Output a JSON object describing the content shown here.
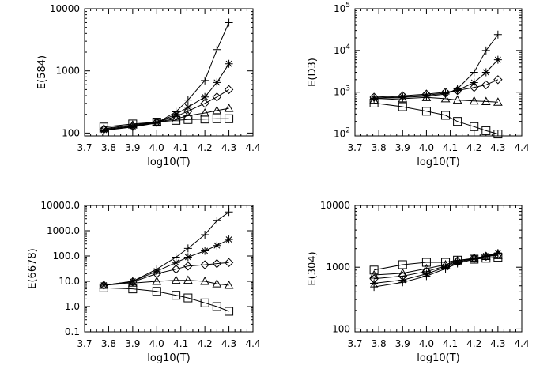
{
  "chart_data": [
    {
      "type": "line",
      "ylabel": "E(584)",
      "xlabel": "log10(T)",
      "xlim": [
        3.7,
        4.4
      ],
      "ylim": [
        90,
        10000
      ],
      "yscale": "log",
      "x": [
        3.78,
        3.9,
        4.0,
        4.08,
        4.13,
        4.2,
        4.25,
        4.3
      ],
      "xticks": [
        "3.7",
        "3.8",
        "3.9",
        "4.0",
        "4.1",
        "4.2",
        "4.3",
        "4.4"
      ],
      "yticks": [
        {
          "value": 100,
          "label": "100"
        },
        {
          "value": 1000,
          "label": "1000"
        },
        {
          "value": 10000,
          "label": "10000"
        }
      ],
      "series": [
        {
          "marker": "plus",
          "values": [
            110,
            125,
            145,
            220,
            340,
            700,
            2200,
            6000
          ]
        },
        {
          "marker": "asterisk",
          "values": [
            112,
            127,
            148,
            200,
            260,
            380,
            650,
            1300
          ]
        },
        {
          "marker": "diamond",
          "values": [
            115,
            130,
            150,
            185,
            225,
            300,
            380,
            500
          ]
        },
        {
          "marker": "triangle",
          "values": [
            118,
            135,
            150,
            170,
            190,
            210,
            230,
            250
          ]
        },
        {
          "marker": "square",
          "values": [
            125,
            140,
            150,
            160,
            165,
            168,
            170,
            170
          ]
        }
      ]
    },
    {
      "type": "line",
      "ylabel": "E(D3)",
      "xlabel": "log10(T)",
      "xlim": [
        3.7,
        4.4
      ],
      "ylim": [
        90,
        100000
      ],
      "yscale": "log",
      "x": [
        3.78,
        3.9,
        4.0,
        4.08,
        4.13,
        4.2,
        4.25,
        4.3
      ],
      "xticks": [
        "3.7",
        "3.8",
        "3.9",
        "4.0",
        "4.1",
        "4.2",
        "4.3",
        "4.4"
      ],
      "yticks": [
        {
          "value": 100,
          "label": "10",
          "sup": "2"
        },
        {
          "value": 1000,
          "label": "10",
          "sup": "3"
        },
        {
          "value": 10000,
          "label": "10",
          "sup": "4"
        },
        {
          "value": 100000,
          "label": "10",
          "sup": "5"
        }
      ],
      "series": [
        {
          "marker": "plus",
          "values": [
            700,
            750,
            800,
            900,
            1200,
            3000,
            10000,
            24000
          ]
        },
        {
          "marker": "asterisk",
          "values": [
            720,
            780,
            850,
            950,
            1100,
            1700,
            3000,
            6000
          ]
        },
        {
          "marker": "diamond",
          "values": [
            760,
            820,
            900,
            1000,
            1100,
            1300,
            1500,
            2000
          ]
        },
        {
          "marker": "triangle",
          "values": [
            650,
            700,
            750,
            700,
            650,
            620,
            600,
            580
          ]
        },
        {
          "marker": "square",
          "values": [
            550,
            450,
            350,
            280,
            200,
            150,
            120,
            100
          ]
        }
      ]
    },
    {
      "type": "line",
      "ylabel": "E(6678)",
      "xlabel": "log10(T)",
      "xlim": [
        3.7,
        4.4
      ],
      "ylim": [
        0.1,
        10000
      ],
      "yscale": "log",
      "x": [
        3.78,
        3.9,
        4.0,
        4.08,
        4.13,
        4.2,
        4.25,
        4.3
      ],
      "xticks": [
        "3.7",
        "3.8",
        "3.9",
        "4.0",
        "4.1",
        "4.2",
        "4.3",
        "4.4"
      ],
      "yticks": [
        {
          "value": 0.1,
          "label": "0.1"
        },
        {
          "value": 1,
          "label": "1.0"
        },
        {
          "value": 10,
          "label": "10.0"
        },
        {
          "value": 100,
          "label": "100.0"
        },
        {
          "value": 1000,
          "label": "1000.0"
        },
        {
          "value": 10000,
          "label": "10000.0"
        }
      ],
      "series": [
        {
          "marker": "plus",
          "values": [
            7,
            10,
            30,
            90,
            200,
            700,
            2500,
            5500
          ]
        },
        {
          "marker": "asterisk",
          "values": [
            7,
            10,
            25,
            55,
            90,
            160,
            260,
            450
          ]
        },
        {
          "marker": "diamond",
          "values": [
            7,
            9.5,
            20,
            30,
            40,
            45,
            50,
            55
          ]
        },
        {
          "marker": "triangle",
          "values": [
            7,
            8.5,
            10,
            11,
            11,
            10,
            8,
            7
          ]
        },
        {
          "marker": "square",
          "values": [
            5.5,
            5,
            4,
            2.8,
            2.2,
            1.4,
            1,
            0.65
          ]
        }
      ]
    },
    {
      "type": "line",
      "ylabel": "E(304)",
      "xlabel": "log10(T)",
      "xlim": [
        3.7,
        4.4
      ],
      "ylim": [
        90,
        10000
      ],
      "yscale": "log",
      "x": [
        3.78,
        3.9,
        4.0,
        4.08,
        4.13,
        4.2,
        4.25,
        4.3
      ],
      "xticks": [
        "3.7",
        "3.8",
        "3.9",
        "4.0",
        "4.1",
        "4.2",
        "4.3",
        "4.4"
      ],
      "yticks": [
        {
          "value": 100,
          "label": "100"
        },
        {
          "value": 1000,
          "label": "1000"
        },
        {
          "value": 10000,
          "label": "10000"
        }
      ],
      "series": [
        {
          "marker": "plus",
          "values": [
            480,
            570,
            720,
            950,
            1150,
            1350,
            1500,
            1650
          ]
        },
        {
          "marker": "asterisk",
          "values": [
            550,
            620,
            780,
            1000,
            1200,
            1380,
            1520,
            1700
          ]
        },
        {
          "marker": "diamond",
          "values": [
            650,
            720,
            850,
            1050,
            1250,
            1400,
            1500,
            1600
          ]
        },
        {
          "marker": "triangle",
          "values": [
            750,
            800,
            950,
            1100,
            1280,
            1400,
            1500,
            1550
          ]
        },
        {
          "marker": "square",
          "values": [
            900,
            1100,
            1200,
            1200,
            1300,
            1350,
            1400,
            1450
          ]
        }
      ]
    }
  ]
}
